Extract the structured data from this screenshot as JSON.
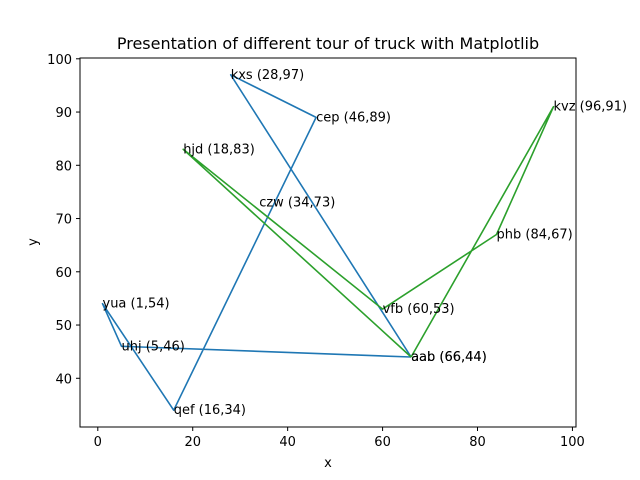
{
  "chart_data": {
    "type": "line",
    "title": "Presentation of different tour of truck with Matplotlib",
    "xlabel": "x",
    "ylabel": "y",
    "xlim": [
      -3.75,
      100.75
    ],
    "ylim": [
      30.85,
      100.15
    ],
    "xticks": [
      0,
      20,
      40,
      60,
      80,
      100
    ],
    "yticks": [
      40,
      50,
      60,
      70,
      80,
      90,
      100
    ],
    "grid": false,
    "series": [
      {
        "color": "#1f77b4",
        "points": [
          {
            "x": 66,
            "y": 44
          },
          {
            "x": 28,
            "y": 97
          },
          {
            "x": 46,
            "y": 89
          },
          {
            "x": 16,
            "y": 34
          },
          {
            "x": 1,
            "y": 54
          },
          {
            "x": 5,
            "y": 46
          },
          {
            "x": 66,
            "y": 44
          }
        ]
      },
      {
        "color": "#2ca02c",
        "points": [
          {
            "x": 66,
            "y": 44
          },
          {
            "x": 96,
            "y": 91
          },
          {
            "x": 84,
            "y": 67
          },
          {
            "x": 60,
            "y": 53
          },
          {
            "x": 18,
            "y": 83
          },
          {
            "x": 66,
            "y": 44
          }
        ]
      }
    ],
    "annotations": [
      {
        "text": "kxs (28,97)",
        "x": 28,
        "y": 97
      },
      {
        "text": "cep (46,89)",
        "x": 46,
        "y": 89
      },
      {
        "text": "kvz (96,91)",
        "x": 96,
        "y": 91
      },
      {
        "text": "hjd (18,83)",
        "x": 18,
        "y": 83
      },
      {
        "text": "czw (34,73)",
        "x": 34,
        "y": 73
      },
      {
        "text": "phb (84,67)",
        "x": 84,
        "y": 67
      },
      {
        "text": "yua (1,54)",
        "x": 1,
        "y": 54
      },
      {
        "text": "vfb (60,53)",
        "x": 60,
        "y": 53
      },
      {
        "text": "uhj (5,46)",
        "x": 5,
        "y": 46
      },
      {
        "text": "aab (66,44)",
        "x": 66,
        "y": 44
      },
      {
        "text": "aab (66,44)",
        "x": 66,
        "y": 44
      },
      {
        "text": "qef (16,34)",
        "x": 16,
        "y": 34
      }
    ]
  }
}
